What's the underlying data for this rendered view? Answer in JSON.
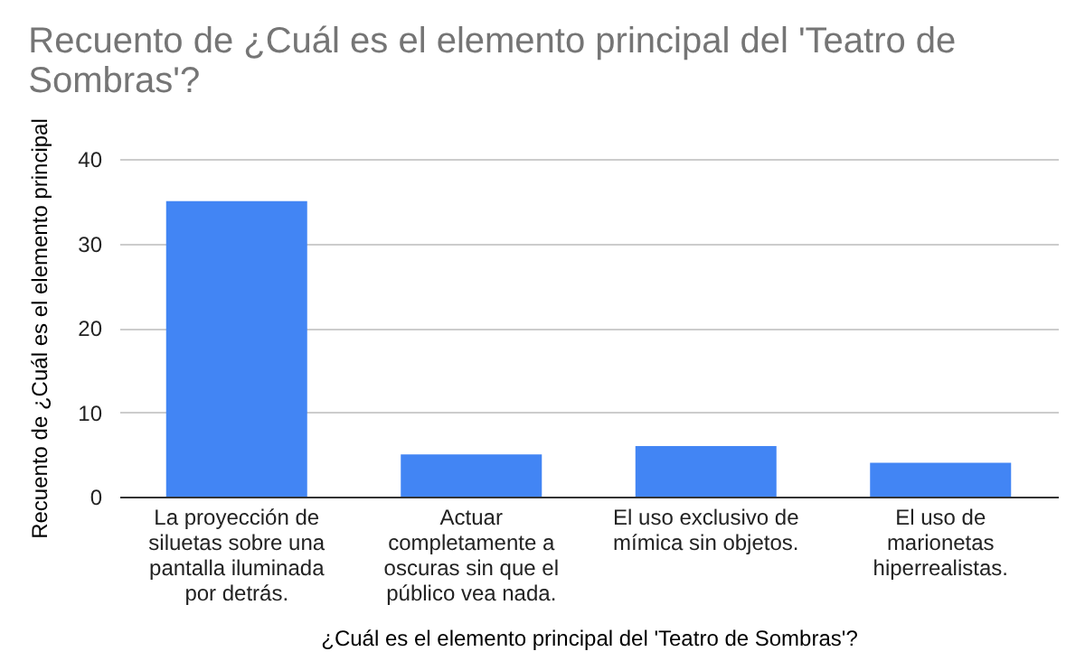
{
  "chart_data": {
    "type": "bar",
    "title": "Recuento de ¿Cuál es el elemento principal del 'Teatro de Sombras'?",
    "xlabel": "¿Cuál es el elemento principal del 'Teatro de Sombras'?",
    "ylabel": "Recuento de ¿Cuál es el elemento principal",
    "categories": [
      "La proyección de siluetas sobre una pantalla iluminada por detrás.",
      "Actuar completamente a oscuras sin que el público vea nada.",
      "El uso exclusivo de mímica sin objetos.",
      "El uso de marionetas hiperrealistas."
    ],
    "values": [
      35,
      5,
      6,
      4
    ],
    "color": "#4285f4",
    "ylim": [
      0,
      40
    ],
    "yticks": [
      0,
      10,
      20,
      30,
      40
    ],
    "grid": "y"
  }
}
